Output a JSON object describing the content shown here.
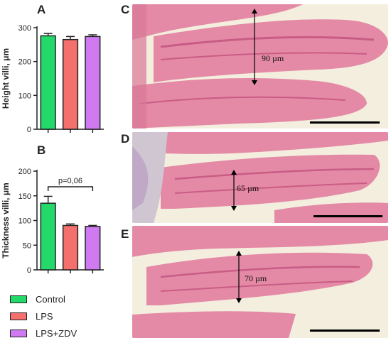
{
  "panels": {
    "a": "A",
    "b": "B",
    "c": "C",
    "d": "D",
    "e": "E"
  },
  "chart_data": [
    {
      "type": "bar",
      "ylabel": "Height villi, μm",
      "ylim": [
        0,
        300
      ],
      "yticks": [
        0,
        100,
        200,
        300
      ],
      "categories": [
        "Control",
        "LPS",
        "LPS+ZDV"
      ],
      "values": [
        276,
        265,
        274
      ],
      "errors": [
        7,
        9,
        5
      ],
      "colors": [
        "#22d96a",
        "#f4706c",
        "#cf7af0"
      ]
    },
    {
      "type": "bar",
      "ylabel": "Thickness villi, μm",
      "ylim": [
        0,
        200
      ],
      "yticks": [
        0,
        50,
        100,
        150,
        200
      ],
      "categories": [
        "Control",
        "LPS",
        "LPS+ZDV"
      ],
      "values": [
        135,
        90,
        88
      ],
      "errors": [
        14,
        3,
        2
      ],
      "colors": [
        "#22d96a",
        "#f4706c",
        "#cf7af0"
      ],
      "annotation": "p=0,06"
    }
  ],
  "legend": [
    {
      "label": "Control",
      "color": "#22d96a"
    },
    {
      "label": "LPS",
      "color": "#f4706c"
    },
    {
      "label": "LPS+ZDV",
      "color": "#cf7af0"
    }
  ],
  "micrographs": [
    {
      "panel": "C",
      "measure": "90 µm"
    },
    {
      "panel": "D",
      "measure": "65 µm"
    },
    {
      "panel": "E",
      "measure": "70 µm"
    }
  ],
  "colors": {
    "tissue": "#e48aa6",
    "tissue_dark": "#c95c85",
    "background": "#f3eede",
    "scale_bar": "#000000"
  }
}
